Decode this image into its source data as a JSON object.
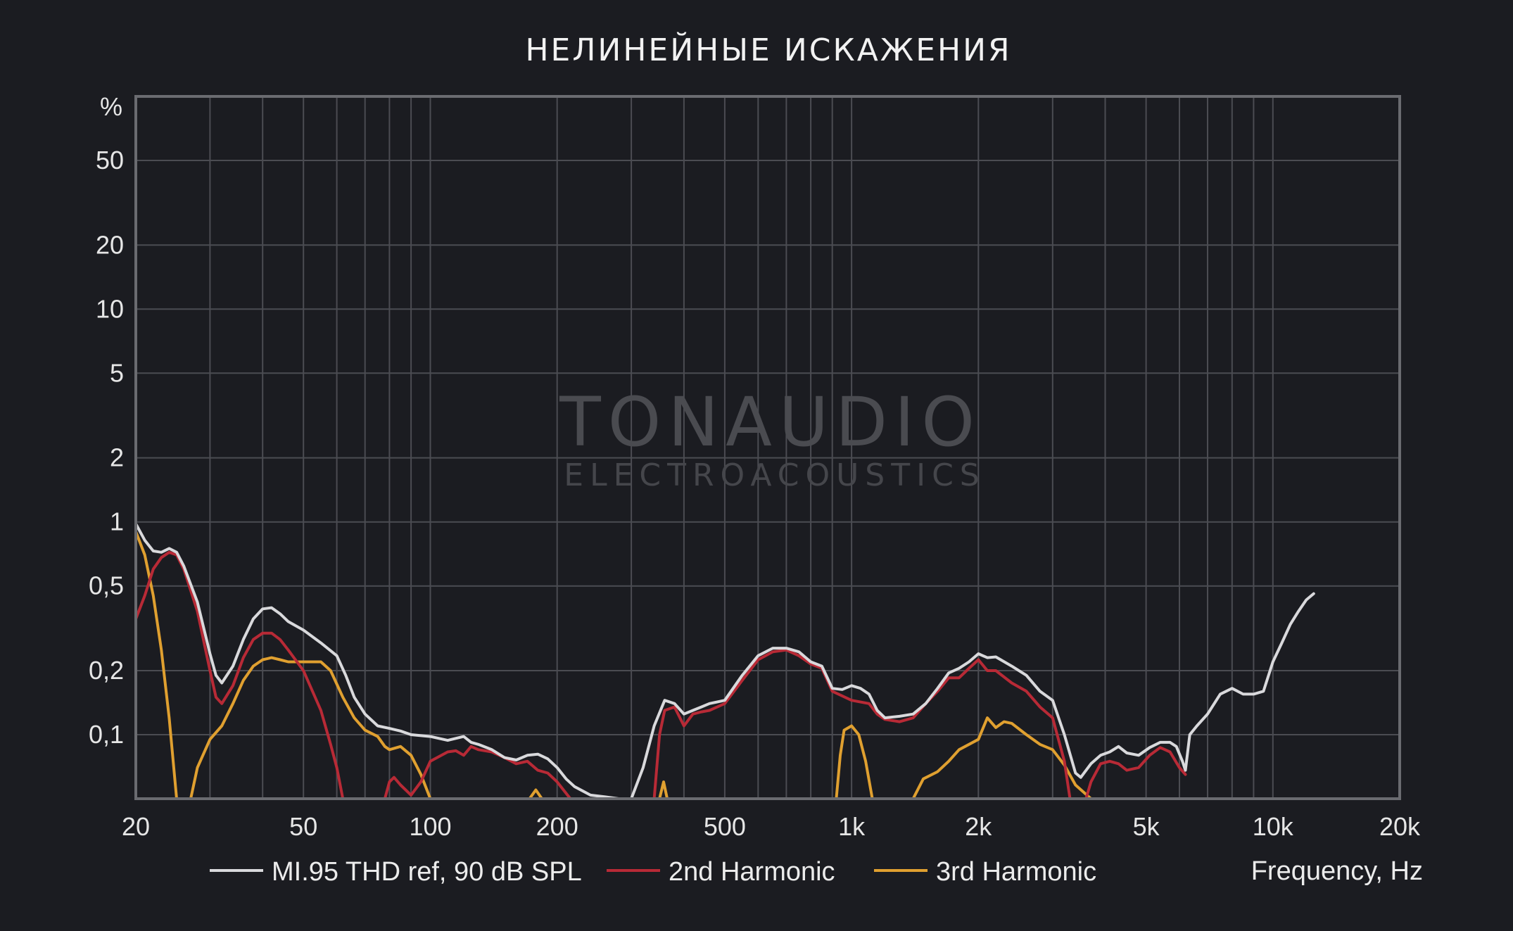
{
  "chart_data": {
    "type": "line",
    "title": "НЕЛИНЕЙНЫЕ ИСКАЖЕНИЯ",
    "xlabel": "Frequency, Hz",
    "ylabel": "%",
    "x_scale": "log",
    "y_scale": "log",
    "xlim": [
      20,
      20000
    ],
    "ylim": [
      0.05,
      100
    ],
    "grid": true,
    "legend_position": "bottom",
    "x_ticks": [
      {
        "value": 20,
        "label": "20"
      },
      {
        "value": 50,
        "label": "50"
      },
      {
        "value": 100,
        "label": "100"
      },
      {
        "value": 200,
        "label": "200"
      },
      {
        "value": 500,
        "label": "500"
      },
      {
        "value": 1000,
        "label": "1k"
      },
      {
        "value": 2000,
        "label": "2k"
      },
      {
        "value": 5000,
        "label": "5k"
      },
      {
        "value": 10000,
        "label": "10k"
      },
      {
        "value": 20000,
        "label": "20k"
      }
    ],
    "y_ticks": [
      {
        "value": 50,
        "label": "50"
      },
      {
        "value": 20,
        "label": "20"
      },
      {
        "value": 10,
        "label": "10"
      },
      {
        "value": 5,
        "label": "5"
      },
      {
        "value": 2,
        "label": "2"
      },
      {
        "value": 1,
        "label": "1"
      },
      {
        "value": 0.5,
        "label": "0,5"
      },
      {
        "value": 0.2,
        "label": "0,2"
      },
      {
        "value": 0.1,
        "label": "0,1"
      }
    ],
    "series": [
      {
        "name": "MI.95 THD ref, 90 dB SPL",
        "color": "#d9d9dc",
        "points": [
          [
            20,
            0.98
          ],
          [
            21,
            0.82
          ],
          [
            22,
            0.73
          ],
          [
            23,
            0.72
          ],
          [
            24,
            0.75
          ],
          [
            25,
            0.72
          ],
          [
            26,
            0.62
          ],
          [
            28,
            0.42
          ],
          [
            30,
            0.24
          ],
          [
            31,
            0.19
          ],
          [
            32,
            0.175
          ],
          [
            34,
            0.21
          ],
          [
            36,
            0.28
          ],
          [
            38,
            0.35
          ],
          [
            40,
            0.39
          ],
          [
            42,
            0.395
          ],
          [
            44,
            0.37
          ],
          [
            46,
            0.34
          ],
          [
            50,
            0.31
          ],
          [
            55,
            0.27
          ],
          [
            60,
            0.235
          ],
          [
            63,
            0.19
          ],
          [
            66,
            0.15
          ],
          [
            70,
            0.125
          ],
          [
            75,
            0.11
          ],
          [
            80,
            0.107
          ],
          [
            85,
            0.104
          ],
          [
            90,
            0.1
          ],
          [
            100,
            0.098
          ],
          [
            110,
            0.094
          ],
          [
            120,
            0.098
          ],
          [
            125,
            0.092
          ],
          [
            130,
            0.09
          ],
          [
            140,
            0.085
          ],
          [
            150,
            0.078
          ],
          [
            160,
            0.076
          ],
          [
            170,
            0.08
          ],
          [
            180,
            0.081
          ],
          [
            190,
            0.077
          ],
          [
            200,
            0.07
          ],
          [
            210,
            0.062
          ],
          [
            220,
            0.057
          ],
          [
            240,
            0.052
          ],
          [
            260,
            0.051
          ],
          [
            280,
            0.05
          ],
          [
            300,
            0.05
          ],
          [
            320,
            0.07
          ],
          [
            340,
            0.11
          ],
          [
            360,
            0.145
          ],
          [
            380,
            0.14
          ],
          [
            400,
            0.125
          ],
          [
            420,
            0.13
          ],
          [
            440,
            0.135
          ],
          [
            460,
            0.14
          ],
          [
            500,
            0.145
          ],
          [
            550,
            0.19
          ],
          [
            600,
            0.235
          ],
          [
            650,
            0.255
          ],
          [
            700,
            0.255
          ],
          [
            750,
            0.245
          ],
          [
            800,
            0.22
          ],
          [
            850,
            0.21
          ],
          [
            900,
            0.165
          ],
          [
            950,
            0.163
          ],
          [
            1000,
            0.17
          ],
          [
            1050,
            0.165
          ],
          [
            1100,
            0.155
          ],
          [
            1150,
            0.13
          ],
          [
            1200,
            0.12
          ],
          [
            1300,
            0.122
          ],
          [
            1400,
            0.125
          ],
          [
            1500,
            0.14
          ],
          [
            1600,
            0.165
          ],
          [
            1700,
            0.195
          ],
          [
            1800,
            0.205
          ],
          [
            1900,
            0.22
          ],
          [
            2000,
            0.24
          ],
          [
            2100,
            0.23
          ],
          [
            2200,
            0.232
          ],
          [
            2400,
            0.21
          ],
          [
            2600,
            0.19
          ],
          [
            2800,
            0.16
          ],
          [
            3000,
            0.145
          ],
          [
            3200,
            0.1
          ],
          [
            3400,
            0.066
          ],
          [
            3500,
            0.063
          ],
          [
            3700,
            0.073
          ],
          [
            3900,
            0.08
          ],
          [
            4100,
            0.083
          ],
          [
            4300,
            0.088
          ],
          [
            4500,
            0.082
          ],
          [
            4800,
            0.08
          ],
          [
            5100,
            0.087
          ],
          [
            5400,
            0.092
          ],
          [
            5700,
            0.092
          ],
          [
            5900,
            0.088
          ],
          [
            6100,
            0.075
          ],
          [
            6200,
            0.068
          ],
          [
            6350,
            0.1
          ],
          [
            6600,
            0.11
          ],
          [
            7000,
            0.125
          ],
          [
            7500,
            0.155
          ],
          [
            8000,
            0.165
          ],
          [
            8500,
            0.155
          ],
          [
            9000,
            0.155
          ],
          [
            9500,
            0.16
          ],
          [
            10000,
            0.22
          ],
          [
            10500,
            0.27
          ],
          [
            11000,
            0.33
          ],
          [
            11500,
            0.38
          ],
          [
            12000,
            0.43
          ],
          [
            12500,
            0.46
          ]
        ]
      },
      {
        "name": "2nd Harmonic",
        "color": "#b82a36",
        "points": [
          [
            20,
            0.35
          ],
          [
            21,
            0.45
          ],
          [
            22,
            0.6
          ],
          [
            23,
            0.68
          ],
          [
            24,
            0.72
          ],
          [
            25,
            0.7
          ],
          [
            26,
            0.6
          ],
          [
            28,
            0.38
          ],
          [
            30,
            0.2
          ],
          [
            31,
            0.15
          ],
          [
            32,
            0.14
          ],
          [
            34,
            0.17
          ],
          [
            36,
            0.23
          ],
          [
            38,
            0.28
          ],
          [
            40,
            0.3
          ],
          [
            42,
            0.3
          ],
          [
            44,
            0.28
          ],
          [
            46,
            0.25
          ],
          [
            50,
            0.2
          ],
          [
            55,
            0.13
          ],
          [
            58,
            0.09
          ],
          [
            60,
            0.07
          ],
          [
            62,
            0.05
          ],
          [
            78,
            0.05
          ],
          [
            80,
            0.06
          ],
          [
            82,
            0.063
          ],
          [
            85,
            0.058
          ],
          [
            90,
            0.052
          ],
          [
            95,
            0.06
          ],
          [
            100,
            0.075
          ],
          [
            110,
            0.083
          ],
          [
            115,
            0.084
          ],
          [
            120,
            0.08
          ],
          [
            125,
            0.088
          ],
          [
            130,
            0.085
          ],
          [
            140,
            0.083
          ],
          [
            150,
            0.078
          ],
          [
            160,
            0.073
          ],
          [
            170,
            0.075
          ],
          [
            180,
            0.068
          ],
          [
            190,
            0.066
          ],
          [
            200,
            0.06
          ],
          [
            215,
            0.05
          ],
          [
            340,
            0.05
          ],
          [
            350,
            0.1
          ],
          [
            360,
            0.13
          ],
          [
            380,
            0.135
          ],
          [
            400,
            0.11
          ],
          [
            420,
            0.125
          ],
          [
            440,
            0.128
          ],
          [
            460,
            0.13
          ],
          [
            500,
            0.14
          ],
          [
            550,
            0.18
          ],
          [
            600,
            0.225
          ],
          [
            650,
            0.245
          ],
          [
            700,
            0.25
          ],
          [
            750,
            0.235
          ],
          [
            800,
            0.215
          ],
          [
            850,
            0.205
          ],
          [
            900,
            0.16
          ],
          [
            1000,
            0.145
          ],
          [
            1100,
            0.14
          ],
          [
            1150,
            0.125
          ],
          [
            1200,
            0.118
          ],
          [
            1300,
            0.115
          ],
          [
            1400,
            0.12
          ],
          [
            1500,
            0.14
          ],
          [
            1600,
            0.16
          ],
          [
            1700,
            0.185
          ],
          [
            1800,
            0.185
          ],
          [
            1900,
            0.205
          ],
          [
            2000,
            0.225
          ],
          [
            2100,
            0.2
          ],
          [
            2200,
            0.2
          ],
          [
            2400,
            0.175
          ],
          [
            2600,
            0.16
          ],
          [
            2800,
            0.135
          ],
          [
            3000,
            0.12
          ],
          [
            3200,
            0.075
          ],
          [
            3300,
            0.05
          ],
          [
            3600,
            0.05
          ],
          [
            3700,
            0.06
          ],
          [
            3900,
            0.073
          ],
          [
            4100,
            0.075
          ],
          [
            4300,
            0.073
          ],
          [
            4500,
            0.068
          ],
          [
            4800,
            0.07
          ],
          [
            5100,
            0.08
          ],
          [
            5400,
            0.087
          ],
          [
            5700,
            0.083
          ],
          [
            6000,
            0.07
          ],
          [
            6200,
            0.065
          ]
        ]
      },
      {
        "name": "3rd Harmonic",
        "color": "#e0a030",
        "points": [
          [
            20,
            0.9
          ],
          [
            21,
            0.7
          ],
          [
            22,
            0.45
          ],
          [
            23,
            0.25
          ],
          [
            24,
            0.12
          ],
          [
            25,
            0.05
          ],
          [
            27,
            0.05
          ],
          [
            28,
            0.07
          ],
          [
            30,
            0.095
          ],
          [
            32,
            0.11
          ],
          [
            34,
            0.14
          ],
          [
            36,
            0.18
          ],
          [
            38,
            0.21
          ],
          [
            40,
            0.225
          ],
          [
            42,
            0.23
          ],
          [
            44,
            0.225
          ],
          [
            46,
            0.22
          ],
          [
            50,
            0.22
          ],
          [
            55,
            0.22
          ],
          [
            58,
            0.2
          ],
          [
            62,
            0.15
          ],
          [
            66,
            0.12
          ],
          [
            70,
            0.105
          ],
          [
            75,
            0.098
          ],
          [
            78,
            0.088
          ],
          [
            80,
            0.085
          ],
          [
            85,
            0.088
          ],
          [
            90,
            0.08
          ],
          [
            95,
            0.065
          ],
          [
            100,
            0.05
          ],
          [
            172,
            0.05
          ],
          [
            178,
            0.055
          ],
          [
            184,
            0.05
          ],
          [
            350,
            0.05
          ],
          [
            358,
            0.06
          ],
          [
            365,
            0.05
          ],
          [
            920,
            0.05
          ],
          [
            940,
            0.08
          ],
          [
            960,
            0.105
          ],
          [
            1000,
            0.11
          ],
          [
            1040,
            0.1
          ],
          [
            1080,
            0.075
          ],
          [
            1120,
            0.05
          ],
          [
            1400,
            0.05
          ],
          [
            1480,
            0.062
          ],
          [
            1600,
            0.067
          ],
          [
            1700,
            0.075
          ],
          [
            1800,
            0.085
          ],
          [
            1900,
            0.09
          ],
          [
            2000,
            0.095
          ],
          [
            2100,
            0.12
          ],
          [
            2200,
            0.108
          ],
          [
            2300,
            0.115
          ],
          [
            2400,
            0.113
          ],
          [
            2600,
            0.1
          ],
          [
            2800,
            0.09
          ],
          [
            3000,
            0.085
          ],
          [
            3200,
            0.072
          ],
          [
            3400,
            0.058
          ],
          [
            3700,
            0.05
          ]
        ]
      }
    ],
    "watermark": {
      "line1": "TONAUDIO",
      "line2": "ELECTROACOUSTICS"
    }
  }
}
